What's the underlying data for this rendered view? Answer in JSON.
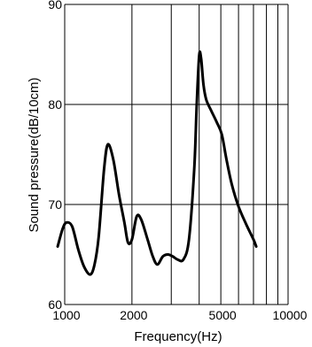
{
  "chart_data": {
    "type": "line",
    "title": "",
    "xlabel": "Frequency(Hz)",
    "ylabel": "Sound pressure(dB/10cm)",
    "x_scale": "log",
    "xlim": [
      1000,
      10000
    ],
    "ylim": [
      60,
      90
    ],
    "x_ticks": [
      {
        "value": 1000,
        "label": "1000"
      },
      {
        "value": 2000,
        "label": "2000"
      },
      {
        "value": 5000,
        "label": "5000"
      },
      {
        "value": 10000,
        "label": "10000"
      }
    ],
    "x_gridlines": [
      1000,
      2000,
      3000,
      4000,
      5000,
      6000,
      7000,
      8000,
      9000,
      10000
    ],
    "y_ticks": [
      {
        "value": 60,
        "label": "60"
      },
      {
        "value": 70,
        "label": "70"
      },
      {
        "value": 80,
        "label": "80"
      },
      {
        "value": 90,
        "label": "90"
      }
    ],
    "grid": true,
    "series": [
      {
        "x": [
          930,
          980,
          1020,
          1080,
          1150,
          1220,
          1300,
          1360,
          1420,
          1500,
          1560,
          1650,
          1750,
          1850,
          1920,
          2000,
          2100,
          2200,
          2350,
          2480,
          2600,
          2750,
          2900,
          3050,
          3200,
          3400,
          3600,
          3800,
          3900,
          4000,
          4080,
          4180,
          4300,
          4500,
          4800,
          5050,
          5300,
          5600,
          6000,
          6500,
          7000,
          7200
        ],
        "y": [
          65.8,
          67.6,
          68.2,
          67.8,
          65.5,
          63.8,
          63.0,
          64.0,
          66.8,
          73.5,
          76.0,
          74.5,
          71.0,
          68.2,
          66.2,
          66.5,
          68.8,
          68.5,
          66.5,
          64.8,
          64.0,
          64.8,
          65.0,
          64.8,
          64.5,
          64.5,
          66.5,
          73.5,
          80.0,
          84.9,
          84.6,
          82.0,
          80.5,
          79.5,
          78.2,
          77.0,
          74.5,
          72.0,
          69.8,
          68.0,
          66.5,
          65.8
        ]
      }
    ]
  }
}
